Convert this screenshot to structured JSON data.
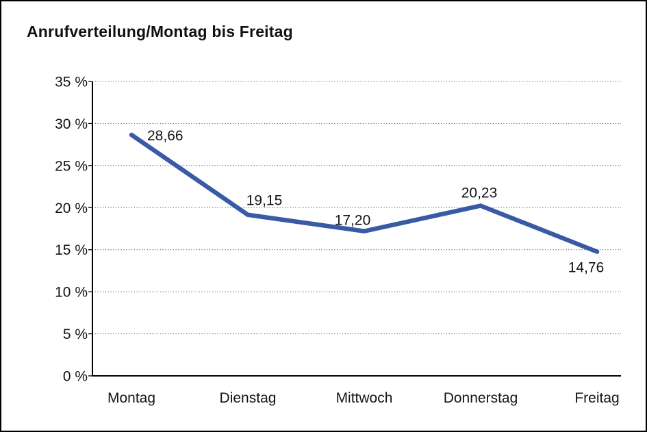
{
  "chart_data": {
    "type": "line",
    "title": "Anrufverteilung/Montag bis Freitag",
    "categories": [
      "Montag",
      "Dienstag",
      "Mittwoch",
      "Donnerstag",
      "Freitag"
    ],
    "values": [
      28.66,
      19.15,
      17.2,
      20.23,
      14.76
    ],
    "value_labels": [
      "28,66",
      "19,15",
      "17,20",
      "20,23",
      "14,76"
    ],
    "xlabel": "",
    "ylabel": "",
    "ylim": [
      0,
      35
    ],
    "ytick_step": 5,
    "ytick_labels": [
      "0 %",
      "5 %",
      "10 %",
      "15 %",
      "20 %",
      "25 %",
      "30 %",
      "35 %"
    ],
    "grid": "horizontal-dotted",
    "legend": "none",
    "line_color": "#3a5aa6",
    "axis_color": "#000000",
    "text_color": "#141414"
  }
}
